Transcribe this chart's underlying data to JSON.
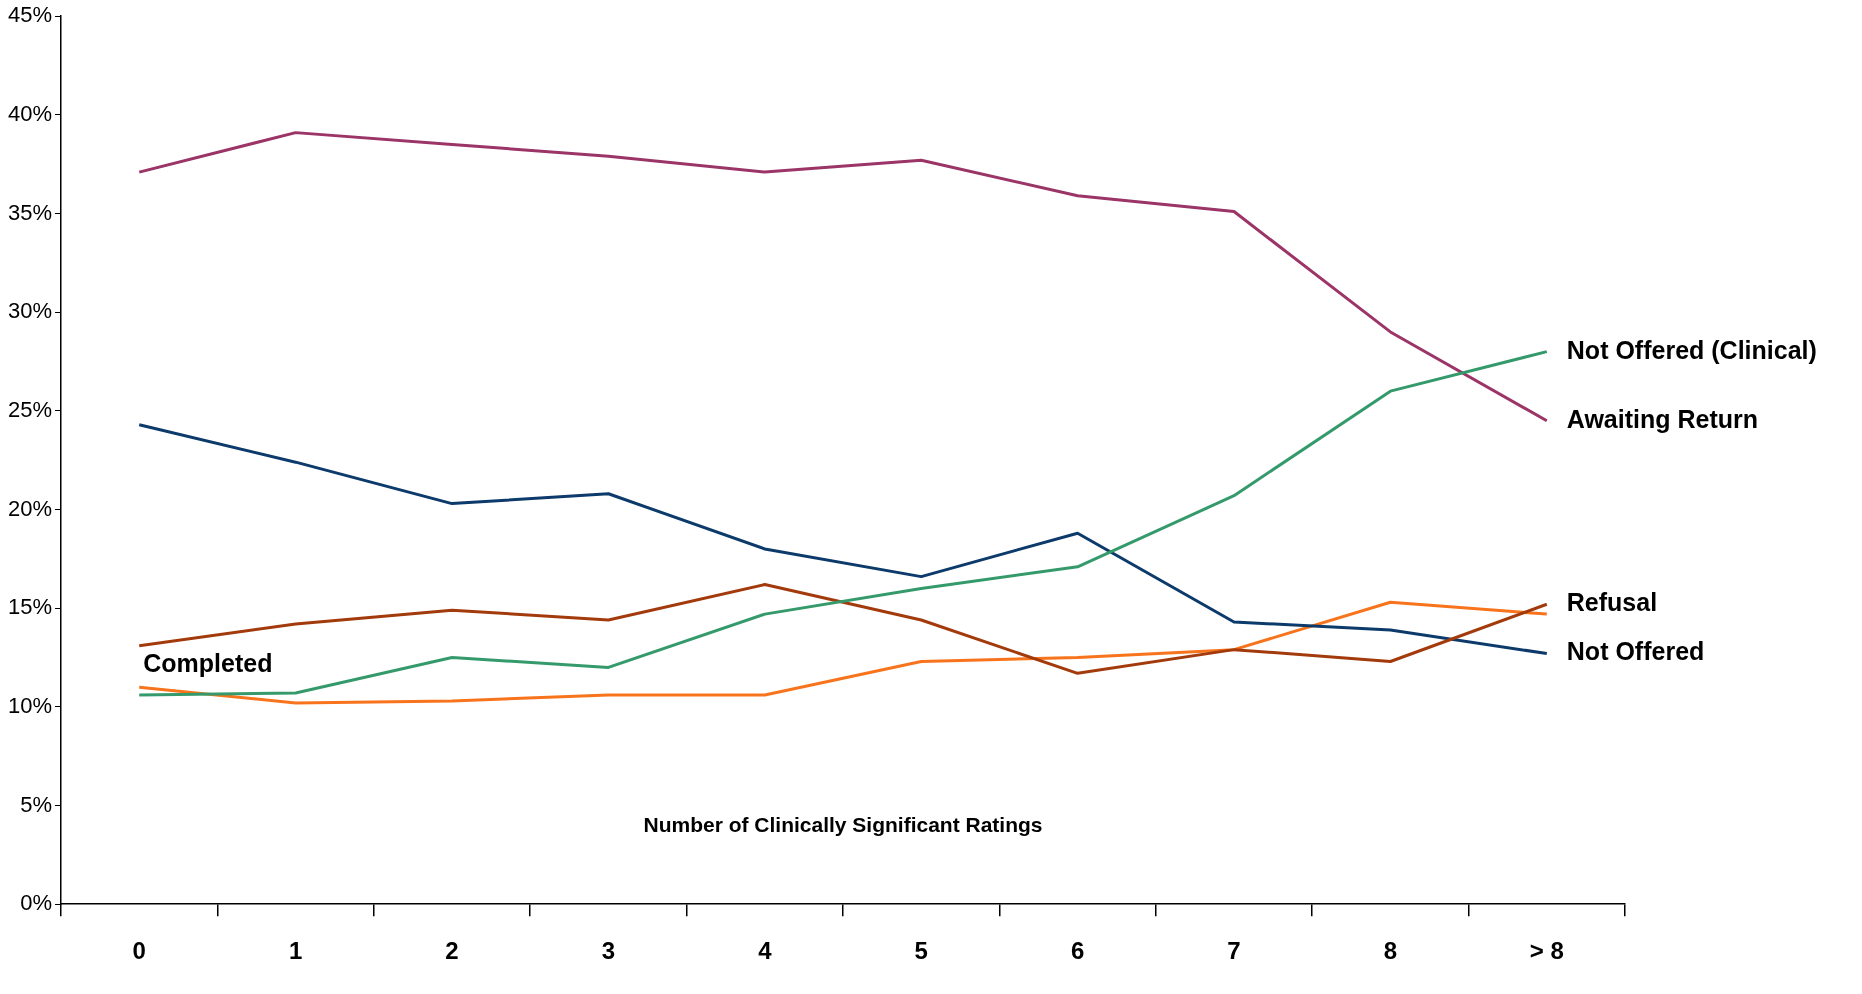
{
  "chart_data": {
    "type": "line",
    "xlabel": "Number of Clinically Significant Ratings",
    "categories": [
      "0",
      "1",
      "2",
      "3",
      "4",
      "5",
      "6",
      "7",
      "8",
      "> 8"
    ],
    "ylim": [
      0,
      45
    ],
    "yticks": [
      {
        "value": 0,
        "label": "0%"
      },
      {
        "value": 5,
        "label": "5%"
      },
      {
        "value": 10,
        "label": "10%"
      },
      {
        "value": 15,
        "label": "15%"
      },
      {
        "value": 20,
        "label": "20%"
      },
      {
        "value": 25,
        "label": "25%"
      },
      {
        "value": 30,
        "label": "30%"
      },
      {
        "value": 35,
        "label": "35%"
      },
      {
        "value": 40,
        "label": "40%"
      },
      {
        "value": 45,
        "label": "45%"
      }
    ],
    "grid": false,
    "legend": false,
    "marker": "none",
    "line_style": "solid",
    "series": [
      {
        "name": "Not Offered (Clinical)",
        "color": "#359a6b",
        "values": [
          10.6,
          10.7,
          12.5,
          12.0,
          14.7,
          16.0,
          17.1,
          20.7,
          26.0,
          28.0
        ]
      },
      {
        "name": "Awaiting Return",
        "color": "#9b3467",
        "values": [
          37.1,
          39.1,
          38.5,
          37.9,
          37.1,
          37.7,
          35.9,
          35.1,
          29.0,
          24.5
        ]
      },
      {
        "name": "Refusal",
        "color": "#a33a0c",
        "values": [
          13.1,
          14.2,
          14.9,
          14.4,
          16.2,
          14.4,
          11.7,
          12.9,
          12.3,
          15.2
        ]
      },
      {
        "name": "Not Offered",
        "color": "#0c3a6b",
        "values": [
          24.3,
          22.4,
          20.3,
          20.8,
          18.0,
          16.6,
          18.8,
          14.3,
          13.9,
          12.7
        ]
      },
      {
        "name": "Completed",
        "color": "#f8741c",
        "values": [
          11.0,
          10.2,
          10.3,
          10.6,
          10.6,
          12.3,
          12.5,
          12.9,
          15.3,
          14.7
        ]
      }
    ]
  }
}
